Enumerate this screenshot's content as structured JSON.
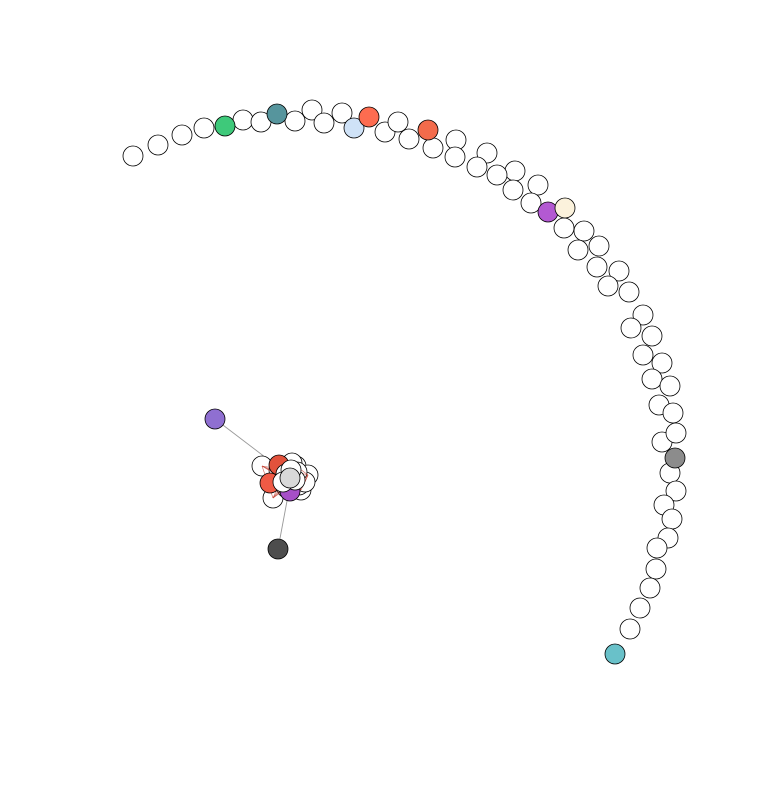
{
  "colors": {
    "default_fill": "#ffffff",
    "stroke": "#000000",
    "edge": "#999999",
    "cluster_edge": "#c0392b"
  },
  "arc_node_fills": {
    "green": "#3ec97a",
    "teal": "#56959d",
    "light_blue": "#cfe2f7",
    "orange_red_1": "#fd6c50",
    "orange_red_2": "#f36b4b",
    "purple": "#b359d2",
    "cream": "#fbf2dc",
    "gray": "#8c8c8c",
    "cyan": "#69c1c9"
  },
  "hub_node_fills": {
    "violet": "#8f6fd1",
    "dark_gray": "#4d4d4d",
    "hub_red_1": "#e2523c",
    "hub_red_2": "#ef5a45",
    "hub_purple": "#a64fc7",
    "hub_center": "#d9d9d9"
  }
}
